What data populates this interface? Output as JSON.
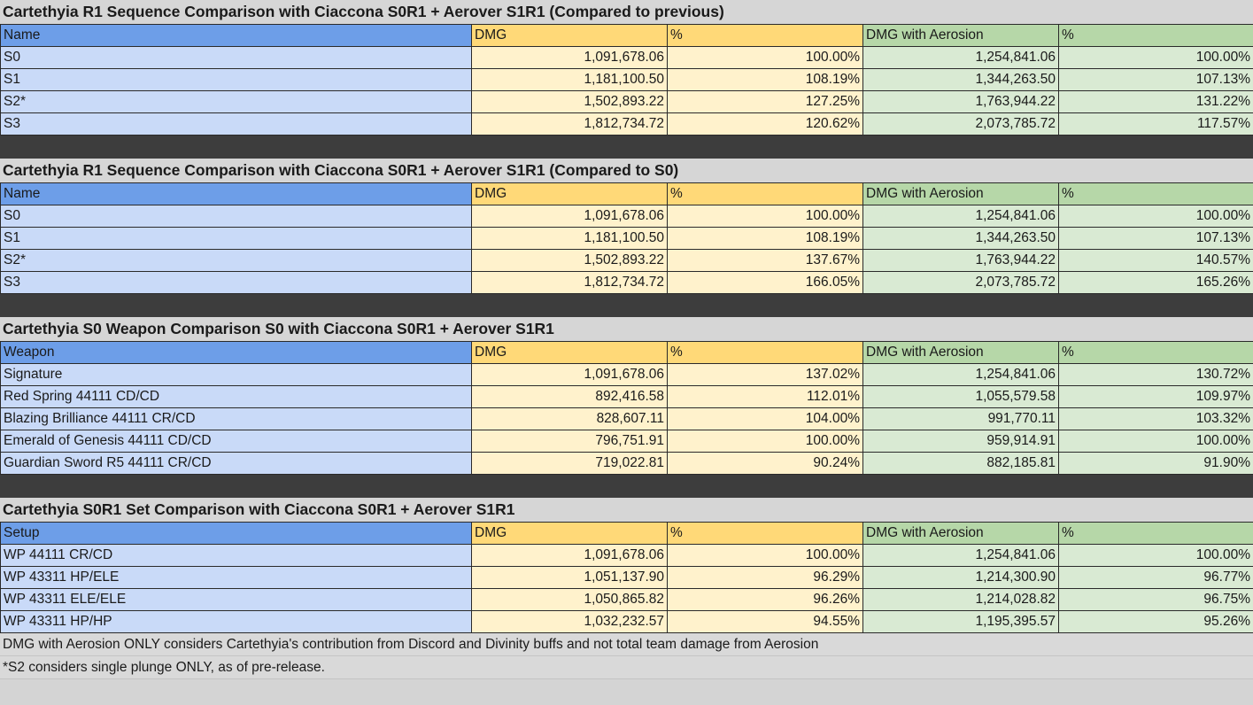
{
  "tables": [
    {
      "title": "Cartethyia R1 Sequence Comparison with Ciaccona S0R1 + Aerover S1R1 (Compared to previous)",
      "headers": [
        "Name",
        "DMG",
        "%",
        "DMG with Aerosion",
        "%"
      ],
      "rows": [
        [
          "S0",
          "1,091,678.06",
          "100.00%",
          "1,254,841.06",
          "100.00%"
        ],
        [
          "S1",
          "1,181,100.50",
          "108.19%",
          "1,344,263.50",
          "107.13%"
        ],
        [
          "S2*",
          "1,502,893.22",
          "127.25%",
          "1,763,944.22",
          "131.22%"
        ],
        [
          "S3",
          "1,812,734.72",
          "120.62%",
          "2,073,785.72",
          "117.57%"
        ]
      ]
    },
    {
      "title": "Cartethyia R1 Sequence Comparison with Ciaccona S0R1 + Aerover S1R1 (Compared to S0)",
      "headers": [
        "Name",
        "DMG",
        "%",
        "DMG with Aerosion",
        "%"
      ],
      "rows": [
        [
          "S0",
          "1,091,678.06",
          "100.00%",
          "1,254,841.06",
          "100.00%"
        ],
        [
          "S1",
          "1,181,100.50",
          "108.19%",
          "1,344,263.50",
          "107.13%"
        ],
        [
          "S2*",
          "1,502,893.22",
          "137.67%",
          "1,763,944.22",
          "140.57%"
        ],
        [
          "S3",
          "1,812,734.72",
          "166.05%",
          "2,073,785.72",
          "165.26%"
        ]
      ]
    },
    {
      "title": "Cartethyia S0 Weapon Comparison S0 with Ciaccona S0R1 + Aerover S1R1",
      "headers": [
        "Weapon",
        "DMG",
        "%",
        "DMG with Aerosion",
        "%"
      ],
      "rows": [
        [
          "Signature",
          "1,091,678.06",
          "137.02%",
          "1,254,841.06",
          "130.72%"
        ],
        [
          "Red Spring 44111 CD/CD",
          "892,416.58",
          "112.01%",
          "1,055,579.58",
          "109.97%"
        ],
        [
          "Blazing Brilliance 44111 CR/CD",
          "828,607.11",
          "104.00%",
          "991,770.11",
          "103.32%"
        ],
        [
          "Emerald of Genesis 44111 CD/CD",
          "796,751.91",
          "100.00%",
          "959,914.91",
          "100.00%"
        ],
        [
          "Guardian Sword R5 44111 CR/CD",
          "719,022.81",
          "90.24%",
          "882,185.81",
          "91.90%"
        ]
      ]
    },
    {
      "title": "Cartethyia S0R1 Set Comparison with Ciaccona S0R1 + Aerover S1R1",
      "headers": [
        "Setup",
        "DMG",
        "%",
        "DMG with Aerosion",
        "%"
      ],
      "rows": [
        [
          "WP 44111 CR/CD",
          "1,091,678.06",
          "100.00%",
          "1,254,841.06",
          "100.00%"
        ],
        [
          "WP 43311 HP/ELE",
          "1,051,137.90",
          "96.29%",
          "1,214,300.90",
          "96.77%"
        ],
        [
          "WP 43311 ELE/ELE",
          "1,050,865.82",
          "96.26%",
          "1,214,028.82",
          "96.75%"
        ],
        [
          "WP 43311 HP/HP",
          "1,032,232.57",
          "94.55%",
          "1,195,395.57",
          "95.26%"
        ]
      ]
    }
  ],
  "notes": [
    "DMG with Aerosion ONLY considers Cartethyia's contribution from Discord and Divinity buffs and not total team damage from Aerosion",
    "*S2 considers single plunge ONLY, as of pre-release."
  ]
}
